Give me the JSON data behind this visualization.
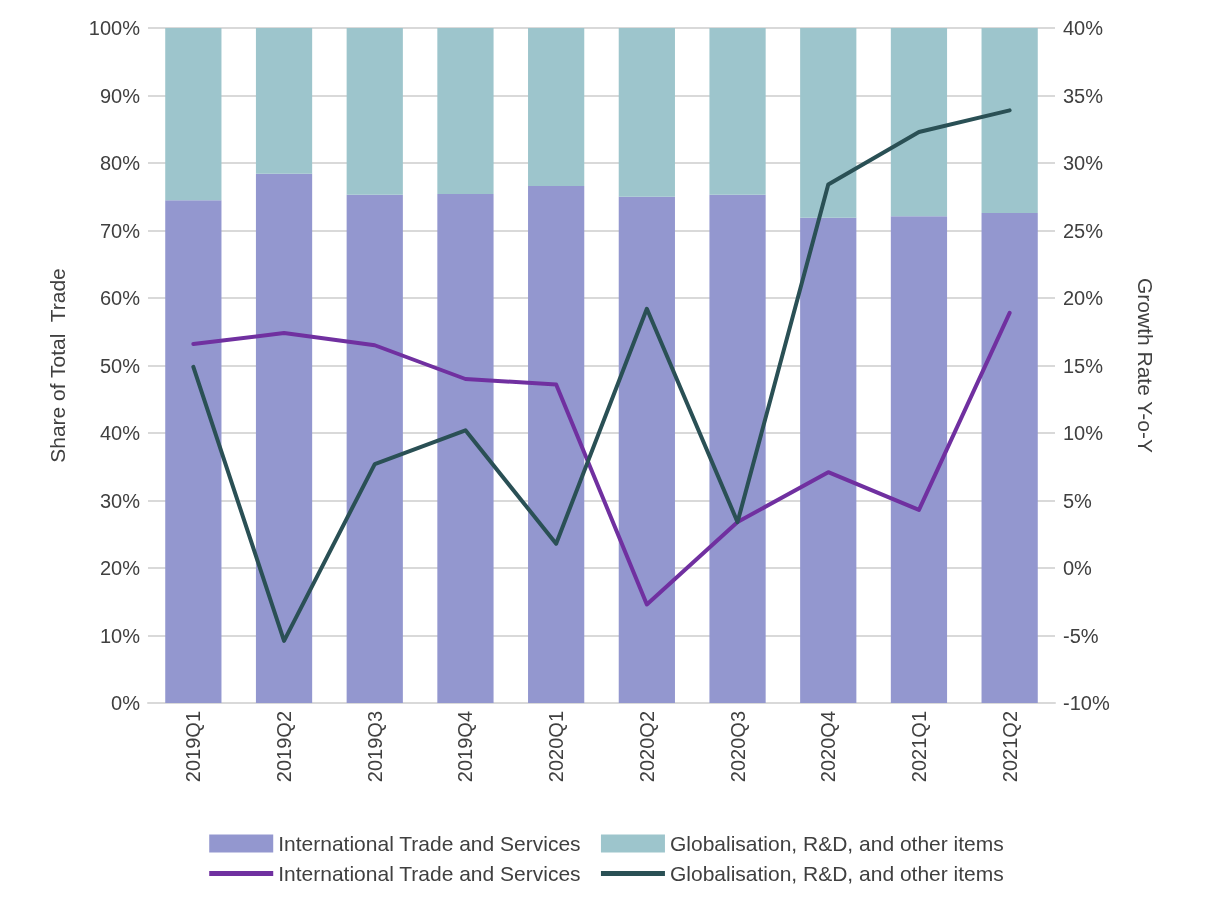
{
  "chart_data": {
    "type": "bar",
    "stacked": true,
    "categories": [
      "2019Q1",
      "2019Q2",
      "2019Q3",
      "2019Q4",
      "2020Q1",
      "2020Q2",
      "2020Q3",
      "2020Q4",
      "2021Q1",
      "2021Q2"
    ],
    "ylabel": "Share of Total  Trade",
    "y2label": "Growth Rate Y-o-Y",
    "ylim": [
      0,
      100
    ],
    "yticks": [
      {
        "value": 0,
        "label": "0%"
      },
      {
        "value": 10,
        "label": "10%"
      },
      {
        "value": 20,
        "label": "20%"
      },
      {
        "value": 30,
        "label": "30%"
      },
      {
        "value": 40,
        "label": "40%"
      },
      {
        "value": 50,
        "label": "50%"
      },
      {
        "value": 60,
        "label": "60%"
      },
      {
        "value": 70,
        "label": "70%"
      },
      {
        "value": 80,
        "label": "80%"
      },
      {
        "value": 90,
        "label": "90%"
      },
      {
        "value": 100,
        "label": "100%"
      }
    ],
    "y2lim": [
      -10,
      40
    ],
    "y2ticks": [
      {
        "value": -10,
        "label": "-10%"
      },
      {
        "value": -5,
        "label": "-5%"
      },
      {
        "value": 0,
        "label": "0%"
      },
      {
        "value": 5,
        "label": "5%"
      },
      {
        "value": 10,
        "label": "10%"
      },
      {
        "value": 15,
        "label": "15%"
      },
      {
        "value": 20,
        "label": "20%"
      },
      {
        "value": 25,
        "label": "25%"
      },
      {
        "value": 30,
        "label": "30%"
      },
      {
        "value": 35,
        "label": "35%"
      },
      {
        "value": 40,
        "label": "40%"
      }
    ],
    "grid": "y",
    "legend": "bottom",
    "line_style": "solid",
    "marker": "none",
    "series": [
      {
        "name": "International Trade and Services",
        "color": "#9397cf",
        "values": [
          74.5,
          78.4,
          75.3,
          75.4,
          76.6,
          75.0,
          75.3,
          71.9,
          72.1,
          72.6
        ]
      },
      {
        "name": "Globalisation, R&D, and other items",
        "color": "#9dc5cc",
        "values": [
          25.5,
          21.6,
          24.7,
          24.6,
          23.4,
          25.0,
          24.7,
          28.1,
          27.9,
          27.4
        ]
      },
      {
        "name": "International Trade and Services",
        "type": "line",
        "axis": "y2",
        "color": "#7030a0",
        "values": [
          16.6,
          17.4,
          16.5,
          14.0,
          13.6,
          -2.7,
          3.4,
          7.1,
          4.3,
          18.9
        ]
      },
      {
        "name": "Globalisation, R&D, and other items",
        "type": "line",
        "axis": "y2",
        "color": "#2a5055",
        "values": [
          14.9,
          -5.4,
          7.7,
          10.2,
          1.8,
          19.2,
          3.4,
          28.4,
          32.3,
          33.9
        ]
      }
    ]
  }
}
